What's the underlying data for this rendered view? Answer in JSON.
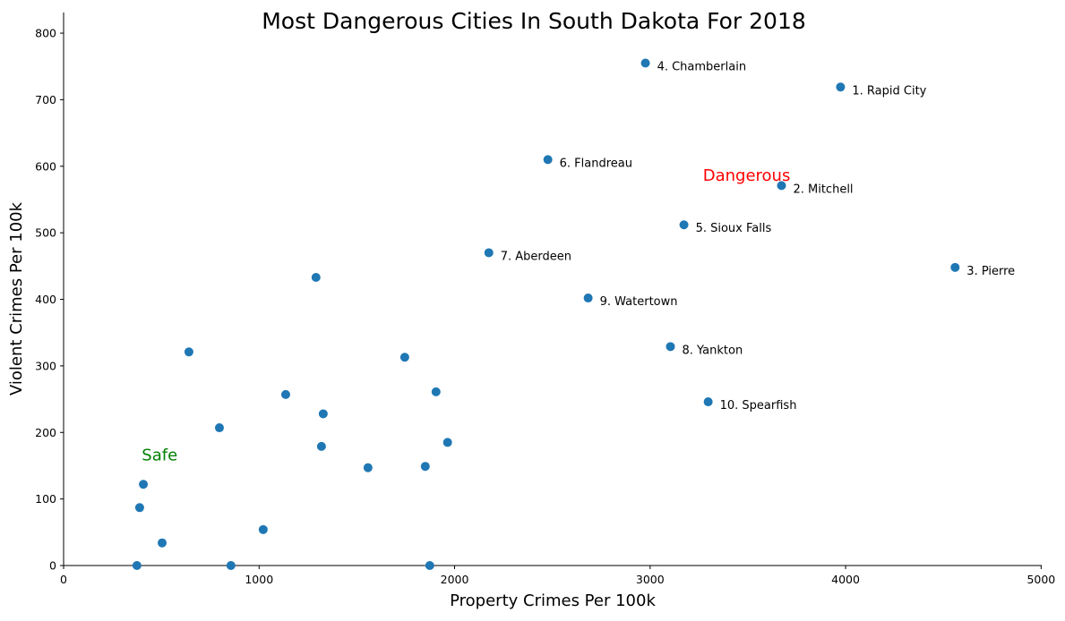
{
  "chart_data": {
    "type": "scatter",
    "title": "Most Dangerous Cities In South Dakota For 2018",
    "xlabel": "Property Crimes Per 100k",
    "ylabel": "Violent Crimes Per 100k",
    "xlim": [
      0,
      5003
    ],
    "ylim": [
      0,
      831
    ],
    "xticks": [
      0,
      1000,
      2000,
      3000,
      4000,
      5000
    ],
    "yticks": [
      0,
      100,
      200,
      300,
      400,
      500,
      600,
      700,
      800
    ],
    "grid": false,
    "marker_color": "#1f77b4",
    "labeled_points": [
      {
        "label": "1. Rapid City",
        "x": 3974,
        "y": 719
      },
      {
        "label": "2. Mitchell",
        "x": 3672,
        "y": 571
      },
      {
        "label": "3. Pierre",
        "x": 4560,
        "y": 448
      },
      {
        "label": "4. Chamberlain",
        "x": 2976,
        "y": 755
      },
      {
        "label": "5. Sioux Falls",
        "x": 3173,
        "y": 512
      },
      {
        "label": "6. Flandreau",
        "x": 2477,
        "y": 610
      },
      {
        "label": "7. Aberdeen",
        "x": 2175,
        "y": 470
      },
      {
        "label": "8. Yankton",
        "x": 3104,
        "y": 329
      },
      {
        "label": "9. Watertown",
        "x": 2683,
        "y": 402
      },
      {
        "label": "10. Spearfish",
        "x": 3297,
        "y": 246
      }
    ],
    "other_points": [
      {
        "x": 1291,
        "y": 433
      },
      {
        "x": 641,
        "y": 321
      },
      {
        "x": 1745,
        "y": 313
      },
      {
        "x": 1136,
        "y": 257
      },
      {
        "x": 1905,
        "y": 261
      },
      {
        "x": 1328,
        "y": 228
      },
      {
        "x": 797,
        "y": 207
      },
      {
        "x": 1319,
        "y": 179
      },
      {
        "x": 1964,
        "y": 185
      },
      {
        "x": 1557,
        "y": 147
      },
      {
        "x": 1850,
        "y": 149
      },
      {
        "x": 408,
        "y": 122
      },
      {
        "x": 389,
        "y": 87
      },
      {
        "x": 504,
        "y": 34
      },
      {
        "x": 1021,
        "y": 54
      },
      {
        "x": 375,
        "y": 0
      },
      {
        "x": 856,
        "y": 0
      },
      {
        "x": 1873,
        "y": 0
      }
    ],
    "annotations": [
      {
        "text": "Dangerous",
        "x": 3270,
        "y": 578,
        "color": "#ff0000"
      },
      {
        "text": "Safe",
        "x": 400,
        "y": 158,
        "color": "#008000"
      }
    ]
  }
}
